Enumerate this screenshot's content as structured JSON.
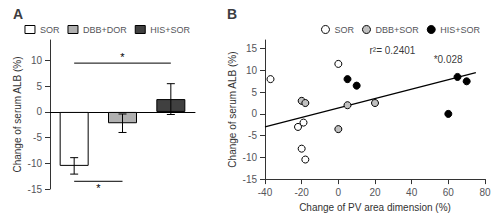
{
  "chart_data": [
    {
      "type": "bar",
      "title": "A",
      "categories": [
        "SOR",
        "DBB+DOR",
        "HIS+SOR"
      ],
      "values": [
        -10.5,
        -2.2,
        2.5
      ],
      "errors": [
        1.6,
        1.8,
        3.0
      ],
      "colors": [
        "white",
        "#b0b0b0",
        "#404040"
      ],
      "ylabel": "Change of serum ALB (%)",
      "ylim": [
        -15,
        14
      ],
      "yticks": [
        -15,
        -10,
        -5,
        0,
        5,
        10
      ],
      "annotations": [
        {
          "text": "*",
          "y": 9.5,
          "from": "SOR",
          "to": "HIS+SOR"
        },
        {
          "text": "*",
          "y": -13.5,
          "from": "SOR",
          "to": "DBB+DOR"
        }
      ],
      "grid": false,
      "legend": "upper right",
      "tick_labels": "y"
    },
    {
      "type": "scatter",
      "title": "B",
      "series": [
        {
          "name": "SOR",
          "type": "scatter",
          "color": "white",
          "x": [
            -37,
            -22,
            -20,
            -19,
            -18,
            0
          ],
          "values": [
            8,
            -3,
            -8,
            -2,
            -10.5,
            11.5
          ]
        },
        {
          "name": "DBB+SOR",
          "type": "scatter",
          "color": "#c0c0c0",
          "x": [
            -20,
            -18,
            0,
            5,
            20
          ],
          "values": [
            3,
            2.5,
            -3.5,
            2,
            2.5
          ]
        },
        {
          "name": "HIS+SOR",
          "type": "scatter",
          "color": "black",
          "x": [
            5,
            10,
            60,
            65,
            70
          ],
          "values": [
            8,
            6.5,
            0,
            8.5,
            7.5
          ]
        },
        {
          "type": "line",
          "color": "black",
          "x": [
            -40,
            75
          ],
          "values": [
            -3.0,
            9.5
          ]
        }
      ],
      "annotations": [
        {
          "text": "r²= 0.2401",
          "x": 17,
          "y": 13
        },
        {
          "text": "*0.028",
          "x": 52,
          "y": 11
        }
      ],
      "xlabel": "Change of PV area dimension (%)",
      "ylabel": "Change of serum ALB (%)",
      "xlim": [
        -40,
        80
      ],
      "ylim": [
        -15,
        17
      ],
      "xticks": [
        -40,
        -20,
        0,
        20,
        40,
        60,
        80
      ],
      "yticks": [
        -15,
        -10,
        -5,
        0,
        5,
        10,
        15
      ],
      "grid": false,
      "legend": "upper right"
    }
  ]
}
